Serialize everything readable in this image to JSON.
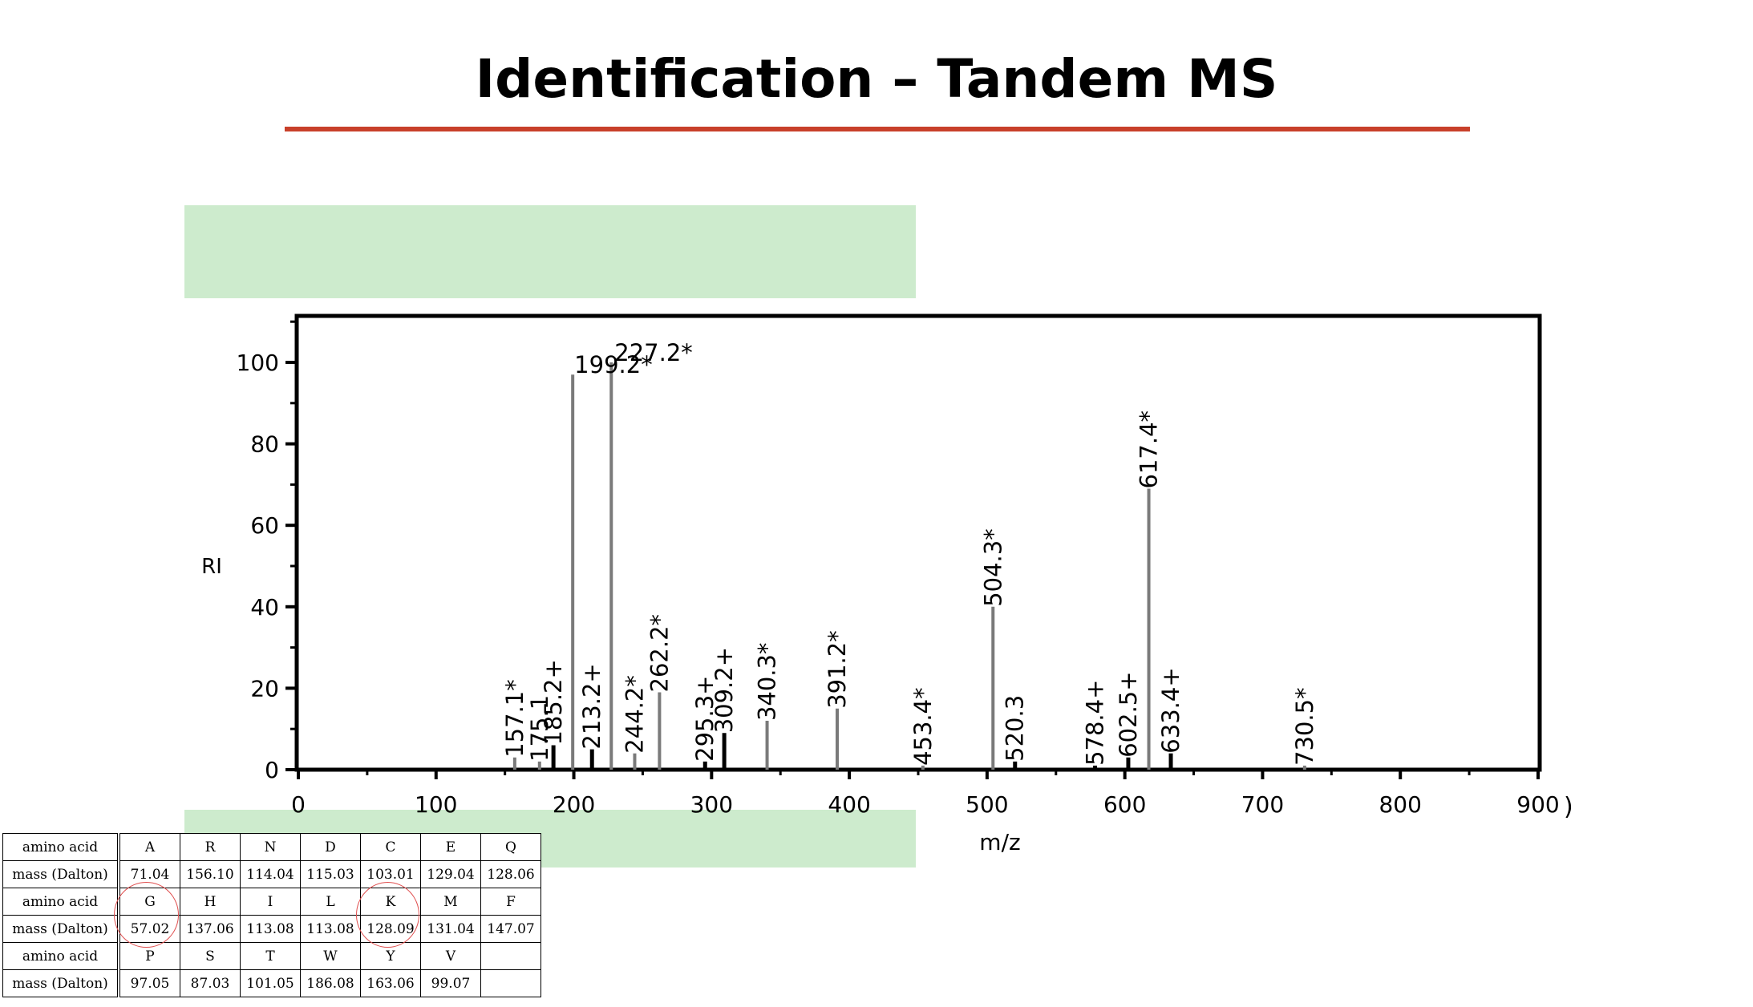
{
  "slide": {
    "title": "Identification – Tandem MS"
  },
  "chart_data": {
    "type": "bar",
    "xlabel": "m/z",
    "ylabel": "RI",
    "xlim": [
      0,
      900
    ],
    "ylim": [
      0,
      110
    ],
    "x_ticks": [
      0,
      100,
      200,
      300,
      400,
      500,
      600,
      700,
      800,
      900
    ],
    "y_ticks": [
      0,
      20,
      40,
      60,
      80,
      100
    ],
    "grid": false,
    "peaks": [
      {
        "mz": 157.1,
        "ri": 3,
        "label": "157.1*",
        "shade": "gray"
      },
      {
        "mz": 175.1,
        "ri": 2,
        "label": "175.1",
        "shade": "gray"
      },
      {
        "mz": 185.2,
        "ri": 6,
        "label": "185.2+",
        "shade": "black"
      },
      {
        "mz": 199.2,
        "ri": 97,
        "label": "199.2*",
        "shade": "gray"
      },
      {
        "mz": 213.2,
        "ri": 5,
        "label": "213.2+",
        "shade": "black"
      },
      {
        "mz": 227.2,
        "ri": 100,
        "label": "227.2*",
        "shade": "gray"
      },
      {
        "mz": 244.2,
        "ri": 4,
        "label": "244.2*",
        "shade": "gray"
      },
      {
        "mz": 262.2,
        "ri": 19,
        "label": "262.2*",
        "shade": "gray"
      },
      {
        "mz": 295.3,
        "ri": 2,
        "label": "295.3+",
        "shade": "black"
      },
      {
        "mz": 309.2,
        "ri": 9,
        "label": "309.2+",
        "shade": "black"
      },
      {
        "mz": 340.3,
        "ri": 12,
        "label": "340.3*",
        "shade": "gray"
      },
      {
        "mz": 391.2,
        "ri": 15,
        "label": "391.2*",
        "shade": "gray"
      },
      {
        "mz": 453.4,
        "ri": 1,
        "label": "453.4*",
        "shade": "gray"
      },
      {
        "mz": 504.3,
        "ri": 40,
        "label": "504.3*",
        "shade": "gray"
      },
      {
        "mz": 520.3,
        "ri": 2,
        "label": "520.3",
        "shade": "black"
      },
      {
        "mz": 578.4,
        "ri": 1,
        "label": "578.4+",
        "shade": "black"
      },
      {
        "mz": 602.5,
        "ri": 3,
        "label": "602.5+",
        "shade": "black"
      },
      {
        "mz": 617.4,
        "ri": 69,
        "label": "617.4*",
        "shade": "gray"
      },
      {
        "mz": 633.4,
        "ri": 4,
        "label": "633.4+",
        "shade": "black"
      },
      {
        "mz": 730.5,
        "ri": 1,
        "label": "730.5*",
        "shade": "gray"
      }
    ],
    "colors": {
      "gray_peak": "#7a7a7a",
      "black_peak": "#000000"
    },
    "stray_mark": ")"
  },
  "aa_table": {
    "rows": [
      {
        "header": "amino acid",
        "cells": [
          "A",
          "R",
          "N",
          "D",
          "C",
          "E",
          "Q"
        ]
      },
      {
        "header": "mass (Dalton)",
        "cells": [
          "71.04",
          "156.10",
          "114.04",
          "115.03",
          "103.01",
          "129.04",
          "128.06"
        ]
      },
      {
        "header": "amino acid",
        "cells": [
          "G",
          "H",
          "I",
          "L",
          "K",
          "M",
          "F"
        ]
      },
      {
        "header": "mass (Dalton)",
        "cells": [
          "57.02",
          "137.06",
          "113.08",
          "113.08",
          "128.09",
          "131.04",
          "147.07"
        ]
      },
      {
        "header": "amino acid",
        "cells": [
          "P",
          "S",
          "T",
          "W",
          "Y",
          "V",
          ""
        ]
      },
      {
        "header": "mass (Dalton)",
        "cells": [
          "97.05",
          "87.03",
          "101.05",
          "186.08",
          "163.06",
          "99.07",
          ""
        ]
      }
    ],
    "circle_color": "#e05050",
    "circled_columns": [
      "G",
      "K"
    ]
  }
}
